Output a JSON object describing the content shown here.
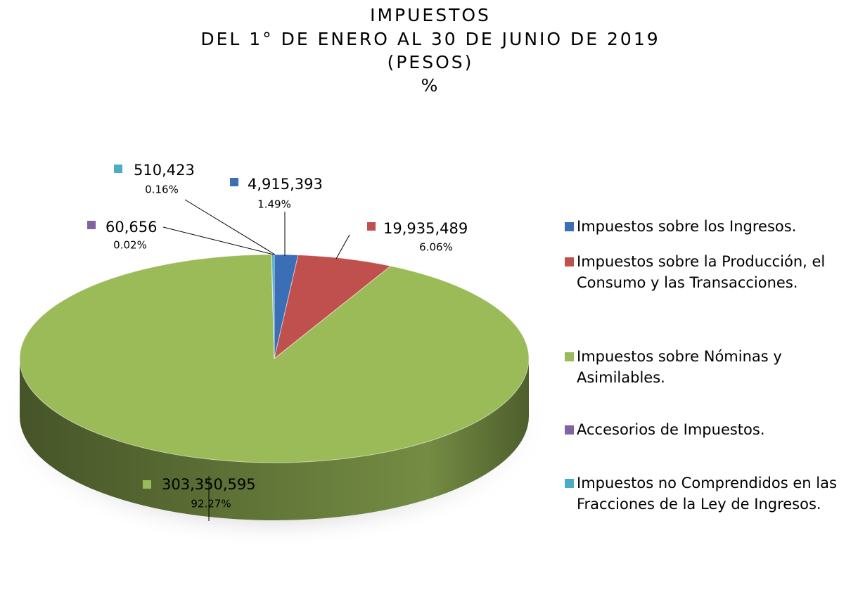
{
  "chart_data": {
    "type": "pie",
    "title_lines": [
      "IMPUESTOS",
      "DEL 1° DE ENERO AL 30 DE JUNIO DE 2019",
      "(PESOS)",
      "%"
    ],
    "categories": [
      "Impuestos sobre los Ingresos.",
      "Impuestos sobre la Producción, el Consumo y las Transacciones.",
      "Impuestos sobre Nóminas y Asimilables.",
      "Accesorios de Impuestos.",
      "Impuestos no Comprendidos en las Fracciones de la Ley de Ingresos."
    ],
    "values": [
      4915393,
      19935489,
      303350595,
      60656,
      510423
    ],
    "value_labels": [
      "4,915,393",
      "19,935,489",
      "303,350,595",
      "60,656",
      "510,423"
    ],
    "percents": [
      1.49,
      6.06,
      92.27,
      0.02,
      0.16
    ],
    "percent_labels": [
      "1.49%",
      "6.06%",
      "92.27%",
      "0.02%",
      "0.16%"
    ],
    "colors": [
      "#3a6fb5",
      "#c0504d",
      "#9bbb59",
      "#8064a2",
      "#4bacc6"
    ],
    "legend": "right"
  }
}
